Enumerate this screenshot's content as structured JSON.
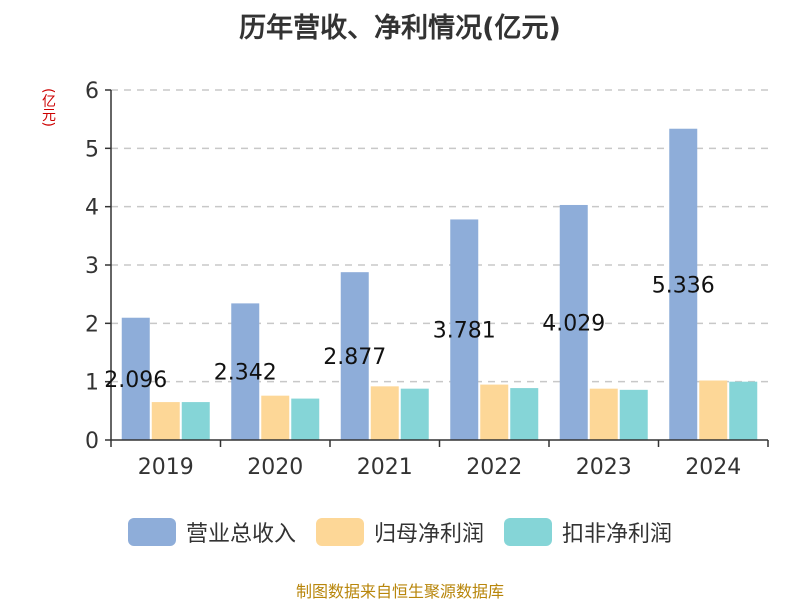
{
  "title": "历年营收、净利情况(亿元)",
  "unit_label": "(亿元)",
  "footer": "制图数据来自恒生聚源数据库",
  "chart_data": {
    "type": "bar",
    "categories": [
      "2019",
      "2020",
      "2021",
      "2022",
      "2023",
      "2024"
    ],
    "ylim": [
      0,
      6
    ],
    "yticks": [
      0,
      1,
      2,
      3,
      4,
      5,
      6
    ],
    "grid": true,
    "legend_position": "bottom",
    "series": [
      {
        "name": "营业总收入",
        "color": "#8eadd9",
        "values": [
          2.096,
          2.342,
          2.877,
          3.781,
          4.029,
          5.336
        ],
        "labels": [
          "2.096",
          "2.342",
          "2.877",
          "3.781",
          "4.029",
          "5.336"
        ]
      },
      {
        "name": "归母净利润",
        "color": "#fdd797",
        "values": [
          0.65,
          0.76,
          0.92,
          0.95,
          0.88,
          1.02
        ]
      },
      {
        "name": "扣非净利润",
        "color": "#85d5d7",
        "values": [
          0.65,
          0.71,
          0.88,
          0.89,
          0.86,
          1.0
        ]
      }
    ]
  }
}
